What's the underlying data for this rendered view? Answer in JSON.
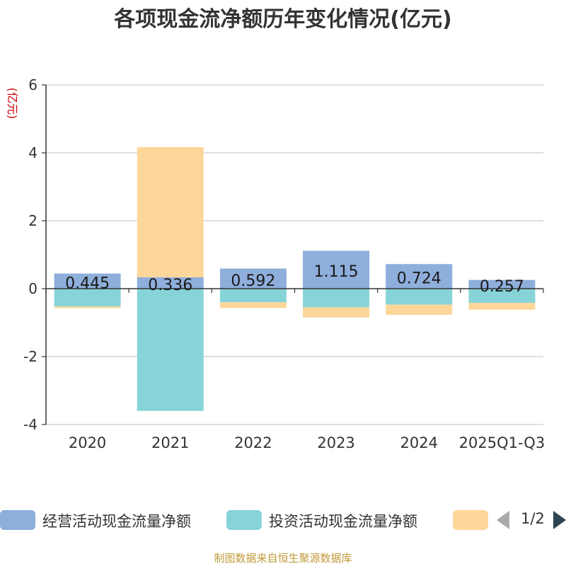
{
  "chart_data": {
    "type": "bar",
    "stacked": true,
    "title": "各项现金流净额历年变化情况(亿元)",
    "ylabel": "(亿元)",
    "xlabel": "",
    "ylim": [
      -4,
      6
    ],
    "yticks": [
      -4,
      -2,
      0,
      2,
      4,
      6
    ],
    "grid": true,
    "categories": [
      "2020",
      "2021",
      "2022",
      "2023",
      "2024",
      "2025Q1-Q3"
    ],
    "series": [
      {
        "name": "经营活动现金流量净额",
        "color": "#8eaedb",
        "values": [
          0.445,
          0.336,
          0.592,
          1.115,
          0.724,
          0.257
        ],
        "data_labels": [
          "0.445",
          "0.336",
          "0.592",
          "1.115",
          "0.724",
          "0.257"
        ]
      },
      {
        "name": "投资活动现金流量净额",
        "color": "#87d4d8",
        "values": [
          -0.52,
          -3.6,
          -0.4,
          -0.55,
          -0.47,
          -0.42
        ]
      },
      {
        "name": "",
        "color": "#fdd69a",
        "values": [
          -0.05,
          3.83,
          -0.17,
          -0.3,
          -0.3,
          -0.2
        ]
      }
    ],
    "legend_position": "bottom"
  },
  "legend_pager": {
    "text": "1/2"
  },
  "source_note": "制图数据来自恒生聚源数据库"
}
